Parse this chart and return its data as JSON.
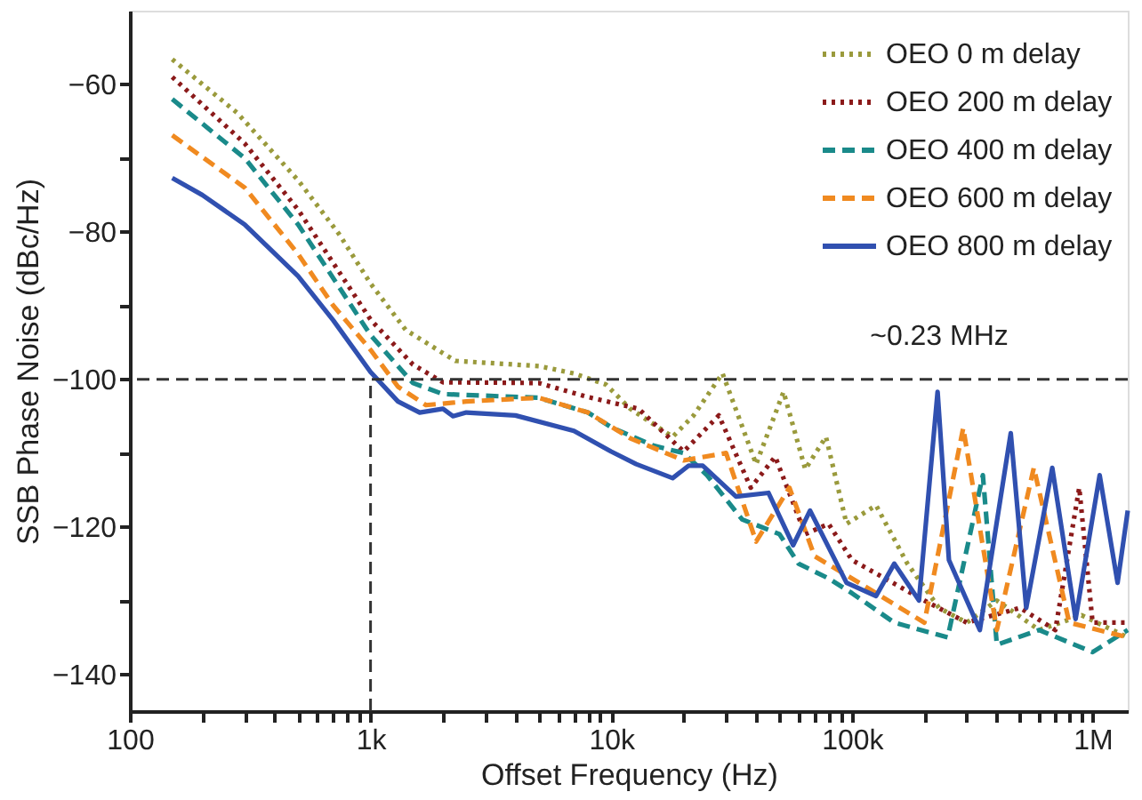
{
  "chart_data": {
    "type": "line",
    "xlabel": "Offset Frequency (Hz)",
    "ylabel": "SSB Phase Noise (dBc/Hz)",
    "log": "x",
    "grid": false,
    "legend": "top right",
    "xlim": [
      100,
      1400000
    ],
    "xticks": [
      100,
      {
        "value": 200,
        "label": null
      },
      {
        "value": 300,
        "label": null
      },
      {
        "value": 400,
        "label": null
      },
      {
        "value": 500,
        "label": null
      },
      {
        "value": 600,
        "label": null
      },
      {
        "value": 700,
        "label": null
      },
      {
        "value": 800,
        "label": null
      },
      {
        "value": 900,
        "label": null
      },
      {
        "value": 1000,
        "label": "1k"
      },
      {
        "value": 2000,
        "label": null
      },
      {
        "value": 3000,
        "label": null
      },
      {
        "value": 4000,
        "label": null
      },
      {
        "value": 5000,
        "label": null
      },
      {
        "value": 6000,
        "label": null
      },
      {
        "value": 7000,
        "label": null
      },
      {
        "value": 8000,
        "label": null
      },
      {
        "value": 9000,
        "label": null
      },
      {
        "value": 10000,
        "label": "10k"
      },
      {
        "value": 20000,
        "label": null
      },
      {
        "value": 30000,
        "label": null
      },
      {
        "value": 40000,
        "label": null
      },
      {
        "value": 50000,
        "label": null
      },
      {
        "value": 60000,
        "label": null
      },
      {
        "value": 70000,
        "label": null
      },
      {
        "value": 80000,
        "label": null
      },
      {
        "value": 90000,
        "label": null
      },
      {
        "value": 100000,
        "label": "100k"
      },
      {
        "value": 200000,
        "label": null
      },
      {
        "value": 300000,
        "label": null
      },
      {
        "value": 400000,
        "label": null
      },
      {
        "value": 500000,
        "label": null
      },
      {
        "value": 600000,
        "label": null
      },
      {
        "value": 700000,
        "label": null
      },
      {
        "value": 800000,
        "label": null
      },
      {
        "value": 900000,
        "label": null
      },
      {
        "value": 1000000,
        "label": "1M"
      }
    ],
    "ylim": [
      -145,
      -50
    ],
    "yticks": [
      -60,
      {
        "value": -70,
        "label": null
      },
      -80,
      {
        "value": -90,
        "label": null
      },
      -100,
      {
        "value": -110,
        "label": null
      },
      -120,
      {
        "value": -130,
        "label": null
      },
      -140
    ],
    "ref_lines": [
      {
        "axis": "y",
        "value": -100,
        "color": "#333333",
        "line_style": "dashed"
      },
      {
        "axis": "x",
        "value": 1000,
        "color": "#333333",
        "line_style": "dashed"
      }
    ],
    "annotations": [
      "~0.23 MHz"
    ],
    "series": [
      {
        "name": "OEO 0 m delay",
        "color": "#9a9a3c",
        "line_style": "dotted",
        "x": [
          150,
          280,
          500,
          740,
          1000,
          1400,
          2250,
          5000,
          7000,
          9500,
          12000,
          18000,
          22000,
          29000,
          40000,
          52000,
          64000,
          78000,
          95000,
          126000,
          170000,
          230000,
          300000,
          400000,
          600000,
          900000,
          1400000
        ],
        "values": [
          -56.6,
          -63.9,
          -73,
          -80.3,
          -87,
          -93.3,
          -97.5,
          -98.2,
          -99.2,
          -100.7,
          -104,
          -107.8,
          -104.9,
          -99.2,
          -111.5,
          -101.7,
          -112.2,
          -107.8,
          -119.6,
          -117.1,
          -125,
          -131,
          -133,
          -130,
          -134,
          -132,
          -135
        ]
      },
      {
        "name": "OEO 200 m delay",
        "color": "#8b1a1a",
        "line_style": "dotted",
        "x": [
          150,
          300,
          500,
          1000,
          1500,
          2000,
          5000,
          8000,
          13000,
          20000,
          28000,
          38000,
          48000,
          64000,
          80000,
          100000,
          200000,
          300000,
          500000,
          700000,
          880000,
          1000000,
          1400000
        ],
        "values": [
          -59,
          -68,
          -77,
          -91.9,
          -98,
          -100.4,
          -100.5,
          -102.4,
          -104,
          -109.8,
          -104.9,
          -114.7,
          -110.5,
          -121,
          -119.6,
          -124.5,
          -130,
          -133,
          -131,
          -134,
          -114.7,
          -133,
          -133
        ]
      },
      {
        "name": "OEO 400 m delay",
        "color": "#1a8a8a",
        "line_style": "dashed",
        "x": [
          150,
          300,
          500,
          1000,
          1500,
          2000,
          5000,
          8000,
          10000,
          15000,
          20000,
          25000,
          35000,
          50000,
          60000,
          80000,
          100000,
          150000,
          250000,
          350000,
          400000,
          600000,
          1000000,
          1400000
        ],
        "values": [
          -62,
          -70,
          -79,
          -94,
          -100.5,
          -102,
          -102.5,
          -104.5,
          -106.5,
          -109,
          -110,
          -113,
          -119,
          -121,
          -125,
          -127,
          -129,
          -133,
          -135,
          -113,
          -136,
          -134,
          -137,
          -134
        ]
      },
      {
        "name": "OEO 600 m delay",
        "color": "#f08a20",
        "line_style": "dashed",
        "x": [
          150,
          300,
          500,
          700,
          1000,
          1300,
          1700,
          2500,
          5000,
          8000,
          12000,
          20000,
          30000,
          40000,
          55000,
          70000,
          100000,
          200000,
          290000,
          400000,
          570000,
          800000,
          1400000
        ],
        "values": [
          -66.9,
          -74,
          -83,
          -90,
          -96,
          -101,
          -103.5,
          -103,
          -102.5,
          -104.5,
          -108,
          -111,
          -110,
          -122,
          -114.7,
          -124,
          -127,
          -133,
          -106.6,
          -134,
          -112,
          -133,
          -135
        ]
      },
      {
        "name": "OEO 800 m delay",
        "color": "#3050b0",
        "line_style": "solid",
        "x": [
          150,
          200,
          300,
          500,
          700,
          1000,
          1300,
          1600,
          2000,
          2200,
          2500,
          4000,
          7000,
          10000,
          12700,
          18000,
          21000,
          24000,
          33000,
          45000,
          57000,
          67000,
          95000,
          126000,
          150000,
          190000,
          227000,
          253000,
          340000,
          457000,
          530000,
          680000,
          850000,
          1070000,
          1270000,
          1400000
        ],
        "values": [
          -72.7,
          -75,
          -79,
          -86,
          -92,
          -99,
          -103,
          -104.5,
          -104,
          -105,
          -104.5,
          -104.9,
          -107,
          -109.8,
          -111.5,
          -113.4,
          -111.7,
          -111.7,
          -115.9,
          -115.4,
          -122.5,
          -117.8,
          -127.6,
          -129.4,
          -125,
          -130,
          -101.7,
          -124.5,
          -134,
          -107.3,
          -131,
          -112,
          -132.5,
          -113,
          -127.6,
          -117.8
        ]
      }
    ]
  }
}
